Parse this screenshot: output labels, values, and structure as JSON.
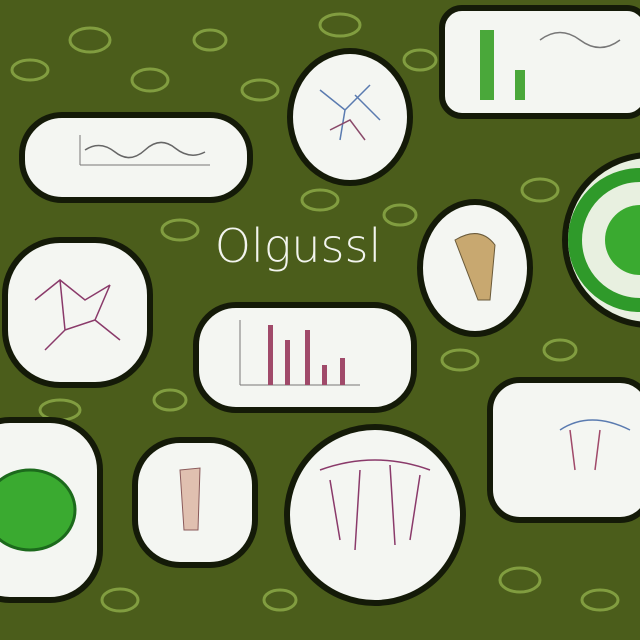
{
  "title": "Olgussl"
}
